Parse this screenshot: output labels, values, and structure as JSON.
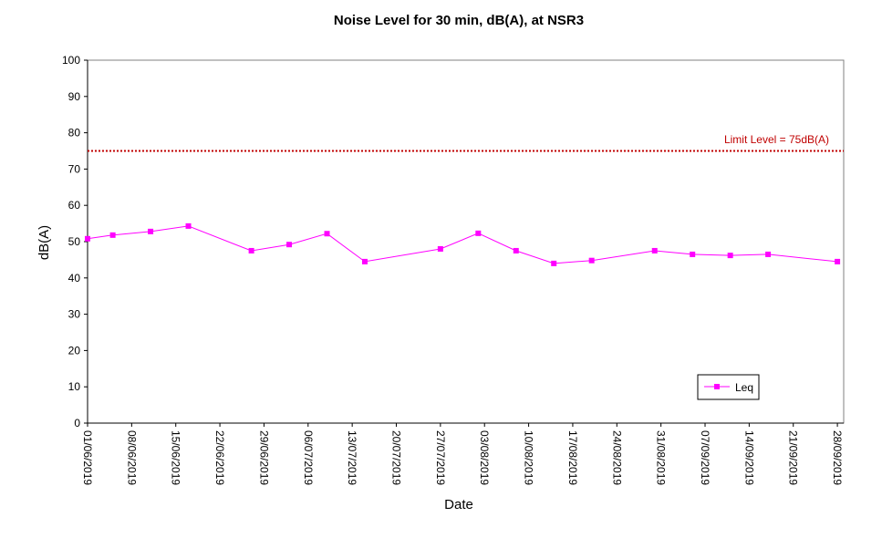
{
  "chart_data": {
    "type": "line",
    "title": "Noise Level for 30 min, dB(A), at NSR3",
    "xlabel": "Date",
    "ylabel": "dB(A)",
    "ylim": [
      0,
      100
    ],
    "yticks": [
      0,
      10,
      20,
      30,
      40,
      50,
      60,
      70,
      80,
      90,
      100
    ],
    "xlim": [
      "2019-06-01",
      "2019-09-29"
    ],
    "xtick_labels": [
      "01/06/2019",
      "08/06/2019",
      "15/06/2019",
      "22/06/2019",
      "29/06/2019",
      "06/07/2019",
      "13/07/2019",
      "20/07/2019",
      "27/07/2019",
      "03/08/2019",
      "10/08/2019",
      "17/08/2019",
      "24/08/2019",
      "31/08/2019",
      "07/09/2019",
      "14/09/2019",
      "21/09/2019",
      "28/09/2019"
    ],
    "grid": false,
    "legend_position": "bottom-right",
    "series": [
      {
        "name": "Leq",
        "color": "#ff00ff",
        "marker": "square",
        "x": [
          "2019-06-01",
          "2019-06-05",
          "2019-06-11",
          "2019-06-17",
          "2019-06-27",
          "2019-07-03",
          "2019-07-09",
          "2019-07-15",
          "2019-07-27",
          "2019-08-02",
          "2019-08-08",
          "2019-08-14",
          "2019-08-20",
          "2019-08-30",
          "2019-09-05",
          "2019-09-11",
          "2019-09-17",
          "2019-09-28"
        ],
        "values": [
          50.8,
          51.8,
          52.8,
          54.3,
          47.5,
          49.2,
          52.2,
          44.5,
          48.0,
          52.3,
          47.5,
          44.0,
          44.8,
          47.5,
          46.5,
          46.2,
          46.5,
          44.5
        ]
      }
    ],
    "reference_line": {
      "label": "Limit Level  = 75dB(A)",
      "value": 75,
      "color": "#c00000",
      "style": "dotted"
    }
  }
}
